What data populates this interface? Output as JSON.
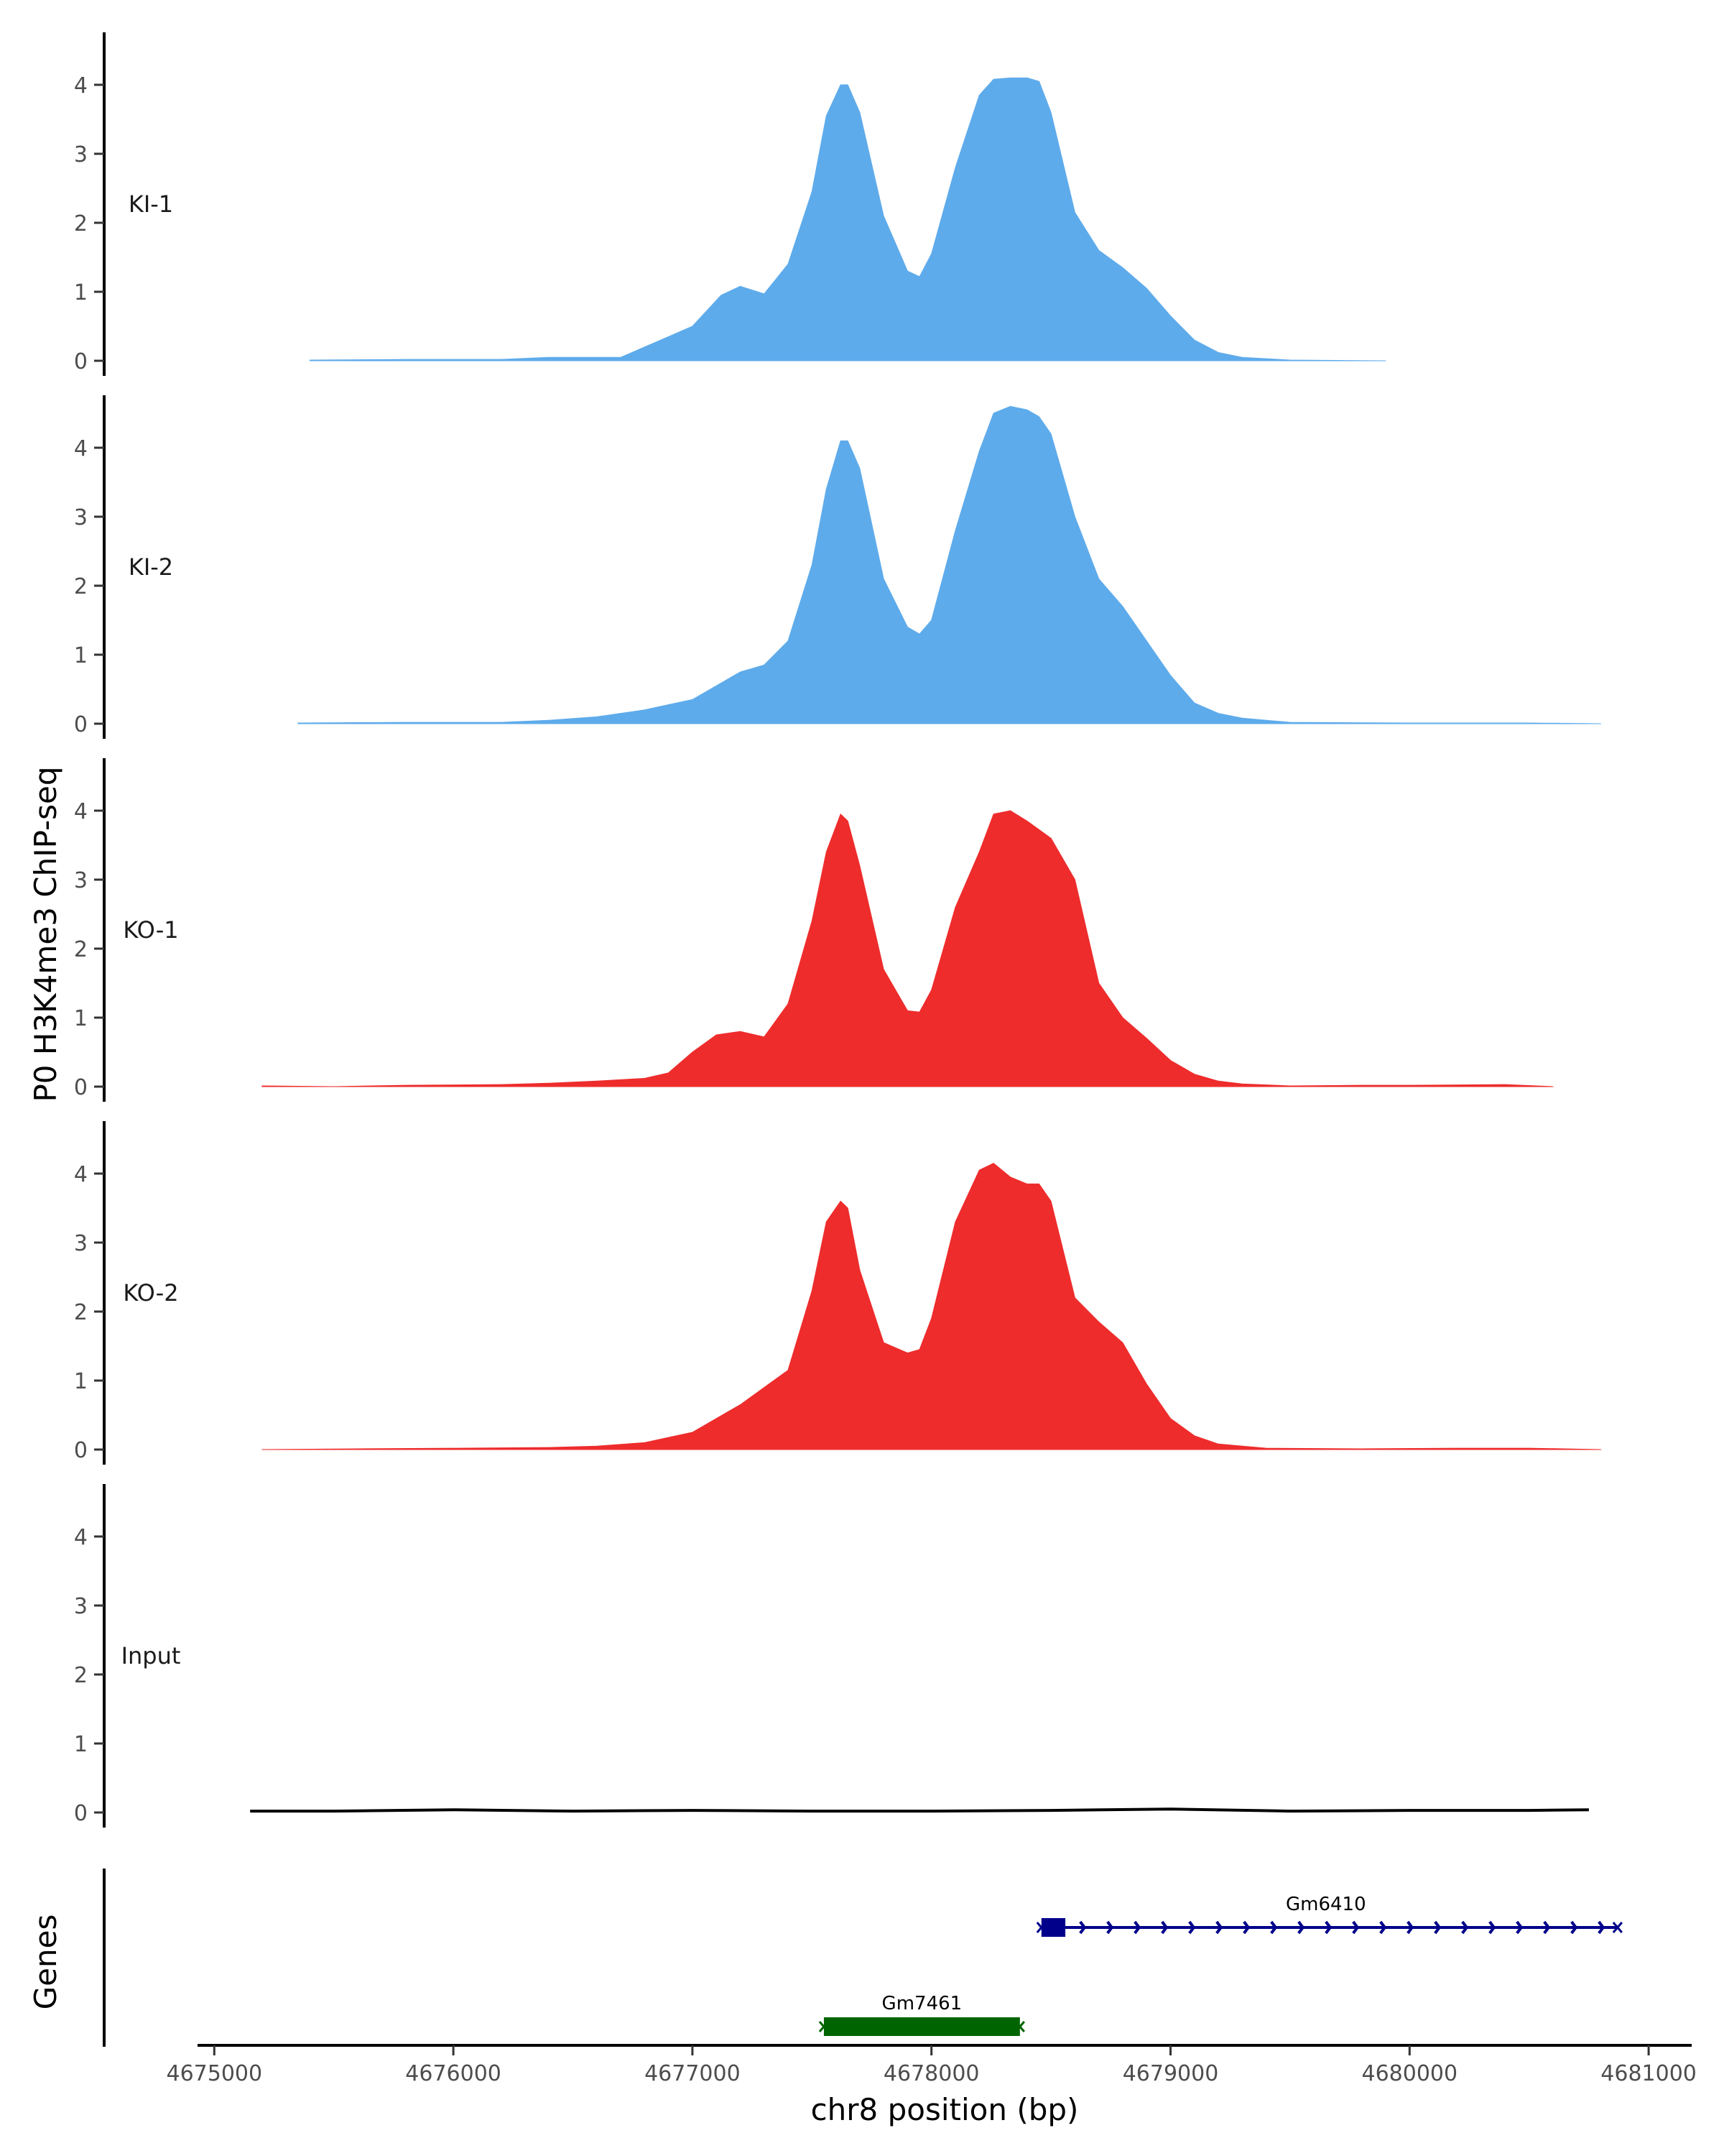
{
  "chart_data": {
    "type": "area",
    "title": "",
    "ylabel": "P0 H3K4me3 ChIP-seq",
    "xlabel": "chr8 position (bp)",
    "genes_label": "Genes",
    "xlim": [
      4674930,
      4681180
    ],
    "ylim": [
      0,
      4.8
    ],
    "x_ticks": [
      4675000,
      4676000,
      4677000,
      4678000,
      4679000,
      4680000,
      4681000
    ],
    "x_tick_labels": [
      "4675000",
      "4676000",
      "4677000",
      "4678000",
      "4679000",
      "4680000",
      "4681000"
    ],
    "y_ticks": [
      0,
      1,
      2,
      3,
      4
    ],
    "y_tick_labels": [
      "0",
      "1",
      "2",
      "3",
      "4"
    ],
    "colors": {
      "KI": "#5EABEB",
      "KO": "#EE2C2C",
      "Input": "#000000",
      "gene_fwd": "#00008B",
      "gene_rev": "#006400"
    },
    "tracks": [
      {
        "name": "KI-1",
        "color": "#5EABEB",
        "x": [
          4675400,
          4675800,
          4676200,
          4676400,
          4676700,
          4676900,
          4677000,
          4677120,
          4677200,
          4677300,
          4677400,
          4677500,
          4677560,
          4677620,
          4677650,
          4677700,
          4677800,
          4677900,
          4677950,
          4678000,
          4678100,
          4678200,
          4678260,
          4678330,
          4678400,
          4678450,
          4678500,
          4678600,
          4678700,
          4678800,
          4678900,
          4679000,
          4679100,
          4679200,
          4679300,
          4679500,
          4679900
        ],
        "y": [
          0.01,
          0.02,
          0.02,
          0.05,
          0.05,
          0.35,
          0.5,
          0.95,
          1.08,
          0.97,
          1.4,
          2.45,
          3.55,
          4.0,
          4.0,
          3.6,
          2.1,
          1.3,
          1.22,
          1.55,
          2.8,
          3.85,
          4.08,
          4.1,
          4.1,
          4.05,
          3.6,
          2.15,
          1.6,
          1.35,
          1.05,
          0.65,
          0.3,
          0.12,
          0.05,
          0.01,
          0.0
        ]
      },
      {
        "name": "KI-2",
        "color": "#5EABEB",
        "x": [
          4675350,
          4675800,
          4676200,
          4676400,
          4676600,
          4676800,
          4677000,
          4677200,
          4677300,
          4677400,
          4677500,
          4677560,
          4677620,
          4677650,
          4677700,
          4677800,
          4677900,
          4677950,
          4678000,
          4678100,
          4678200,
          4678260,
          4678330,
          4678400,
          4678450,
          4678500,
          4678600,
          4678700,
          4678800,
          4678900,
          4679000,
          4679100,
          4679200,
          4679300,
          4679500,
          4680000,
          4680500,
          4680800
        ],
        "y": [
          0.01,
          0.02,
          0.02,
          0.05,
          0.1,
          0.2,
          0.35,
          0.75,
          0.85,
          1.2,
          2.3,
          3.4,
          4.1,
          4.1,
          3.7,
          2.1,
          1.4,
          1.3,
          1.5,
          2.8,
          3.95,
          4.5,
          4.6,
          4.55,
          4.45,
          4.2,
          3.0,
          2.1,
          1.7,
          1.2,
          0.7,
          0.3,
          0.15,
          0.08,
          0.02,
          0.01,
          0.01,
          0.0
        ]
      },
      {
        "name": "KO-1",
        "color": "#EE2C2C",
        "x": [
          4675200,
          4675500,
          4675800,
          4676200,
          4676400,
          4676600,
          4676800,
          4676900,
          4677000,
          4677100,
          4677200,
          4677300,
          4677400,
          4677500,
          4677560,
          4677620,
          4677650,
          4677700,
          4677800,
          4677900,
          4677950,
          4678000,
          4678100,
          4678200,
          4678260,
          4678330,
          4678400,
          4678500,
          4678600,
          4678700,
          4678800,
          4678900,
          4679000,
          4679100,
          4679200,
          4679300,
          4679500,
          4679800,
          4680000,
          4680400,
          4680600
        ],
        "y": [
          0.01,
          0.0,
          0.02,
          0.03,
          0.05,
          0.08,
          0.12,
          0.2,
          0.5,
          0.75,
          0.8,
          0.72,
          1.2,
          2.4,
          3.4,
          3.95,
          3.85,
          3.2,
          1.7,
          1.1,
          1.08,
          1.4,
          2.6,
          3.4,
          3.95,
          4.0,
          3.85,
          3.6,
          3.0,
          1.5,
          1.0,
          0.7,
          0.38,
          0.18,
          0.08,
          0.04,
          0.01,
          0.02,
          0.02,
          0.03,
          0.0
        ]
      },
      {
        "name": "KO-2",
        "color": "#EE2C2C",
        "x": [
          4675200,
          4675600,
          4676000,
          4676400,
          4676600,
          4676800,
          4677000,
          4677200,
          4677400,
          4677500,
          4677560,
          4677620,
          4677650,
          4677700,
          4677800,
          4677900,
          4677950,
          4678000,
          4678100,
          4678200,
          4678260,
          4678330,
          4678400,
          4678450,
          4678500,
          4678600,
          4678700,
          4678800,
          4678900,
          4679000,
          4679100,
          4679200,
          4679400,
          4679800,
          4680200,
          4680500,
          4680800
        ],
        "y": [
          0.0,
          0.01,
          0.02,
          0.03,
          0.05,
          0.1,
          0.25,
          0.65,
          1.15,
          2.3,
          3.3,
          3.6,
          3.5,
          2.6,
          1.55,
          1.4,
          1.45,
          1.9,
          3.3,
          4.05,
          4.15,
          3.95,
          3.85,
          3.85,
          3.6,
          2.2,
          1.85,
          1.55,
          0.95,
          0.45,
          0.2,
          0.08,
          0.02,
          0.01,
          0.02,
          0.02,
          0.0
        ]
      },
      {
        "name": "Input",
        "color": "#000000",
        "x": [
          4675150,
          4675500,
          4676000,
          4676500,
          4677000,
          4677500,
          4678000,
          4678500,
          4679000,
          4679500,
          4680000,
          4680500,
          4680750
        ],
        "y": [
          0.02,
          0.02,
          0.04,
          0.02,
          0.03,
          0.02,
          0.02,
          0.03,
          0.05,
          0.02,
          0.03,
          0.03,
          0.04
        ]
      }
    ],
    "genes": [
      {
        "name": "Gm6410",
        "strand": "+",
        "start": 4678460,
        "end": 4680870,
        "exon_start": 4678460,
        "exon_end": 4678560,
        "color": "#00008B",
        "row": 0
      },
      {
        "name": "Gm7461",
        "strand": "-",
        "start": 4677550,
        "end": 4678370,
        "exon_start": 4677550,
        "exon_end": 4678370,
        "color": "#006400",
        "row": 1
      }
    ]
  }
}
